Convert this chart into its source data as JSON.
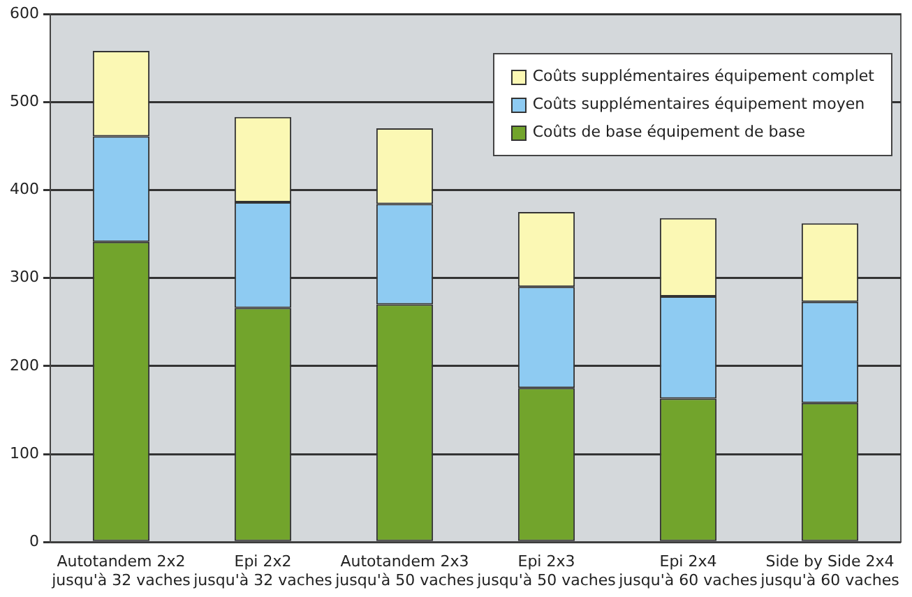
{
  "chart_data": {
    "type": "bar",
    "stacked": true,
    "categories": [
      "Autotandem 2x2\njusqu'à 32 vaches",
      "Epi 2x2\njusqu'à 32 vaches",
      "Autotandem 2x3\njusqu'à 50 vaches",
      "Epi 2x3\njusqu'à 50 vaches",
      "Epi 2x4\njusqu'à 60 vaches",
      "Side by Side 2x4\njusqu'à 60 vaches"
    ],
    "series": [
      {
        "name": "Coûts de base équipement de base",
        "color": "#72a42c",
        "values": [
          341,
          266,
          270,
          175,
          163,
          158
        ]
      },
      {
        "name": "Coûts supplémentaires équipement moyen",
        "color": "#8ecbf2",
        "values": [
          120,
          120,
          114,
          115,
          116,
          115
        ]
      },
      {
        "name": "Coûts supplémentaires équipement complet",
        "color": "#fbf8b4",
        "values": [
          97,
          97,
          86,
          85,
          89,
          89
        ]
      }
    ],
    "ylim": [
      0,
      600
    ],
    "yticks": [
      0,
      100,
      200,
      300,
      400,
      500,
      600
    ],
    "grid": "y",
    "legend": "top right"
  }
}
